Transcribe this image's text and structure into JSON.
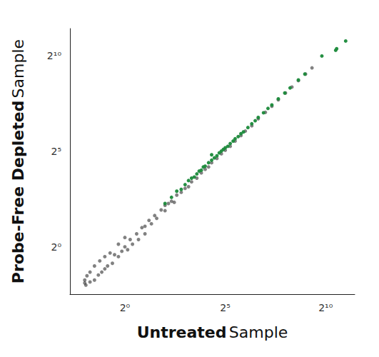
{
  "chart_data": {
    "type": "scatter",
    "x_label": [
      "Untreated",
      "Sample"
    ],
    "y_label": [
      "Probe-Free Depleted",
      "Sample"
    ],
    "log": true,
    "grid": false,
    "xlim": [
      0.15,
      2800
    ],
    "ylim": [
      0.18,
      2700
    ],
    "xticks": [
      {
        "value": 1,
        "label": "2⁰"
      },
      {
        "value": 32,
        "label": "2⁵"
      },
      {
        "value": 1024,
        "label": "2¹⁰"
      }
    ],
    "yticks": [
      {
        "value": 1,
        "label": "2⁰"
      },
      {
        "value": 32,
        "label": "2⁵"
      },
      {
        "value": 1024,
        "label": "2¹⁰"
      }
    ],
    "series": [
      {
        "color": "#1a1a1a",
        "values": [
          [
            0.25,
            0.27
          ],
          [
            0.25,
            0.3
          ],
          [
            0.26,
            0.25
          ],
          [
            0.27,
            0.35
          ],
          [
            0.3,
            0.28
          ],
          [
            0.3,
            0.4
          ],
          [
            0.35,
            0.3
          ],
          [
            0.35,
            0.5
          ],
          [
            0.4,
            0.36
          ],
          [
            0.42,
            0.6
          ],
          [
            0.45,
            0.4
          ],
          [
            0.5,
            0.45
          ],
          [
            0.5,
            0.7
          ],
          [
            0.55,
            0.5
          ],
          [
            0.6,
            0.8
          ],
          [
            0.65,
            0.55
          ],
          [
            0.7,
            0.75
          ],
          [
            0.8,
            0.7
          ],
          [
            0.8,
            1.1
          ],
          [
            0.9,
            0.85
          ],
          [
            1,
            1
          ],
          [
            1,
            1.4
          ],
          [
            1.1,
            0.9
          ],
          [
            1.2,
            1.3
          ],
          [
            1.3,
            1.1
          ],
          [
            1.5,
            1.6
          ],
          [
            1.6,
            1.3
          ],
          [
            1.8,
            2
          ],
          [
            2,
            2.1
          ],
          [
            2,
            1.6
          ],
          [
            2.3,
            2.6
          ],
          [
            2.5,
            2.3
          ],
          [
            2.8,
            3.1
          ],
          [
            3,
            2.8
          ],
          [
            3.5,
            3.8
          ],
          [
            4,
            3.7
          ],
          [
            4,
            4.5
          ],
          [
            4.5,
            4.8
          ],
          [
            5,
            5.2
          ],
          [
            5.5,
            5
          ],
          [
            6,
            6.5
          ],
          [
            7,
            7.2
          ],
          [
            8,
            8.3
          ],
          [
            9,
            8.8
          ],
          [
            10,
            10.5
          ],
          [
            12,
            12
          ],
          [
            14,
            14.5
          ],
          [
            16,
            16.5
          ],
          [
            18,
            18
          ],
          [
            20,
            21
          ],
          [
            24,
            24.5
          ],
          [
            28,
            29
          ],
          [
            32,
            33
          ],
          [
            38,
            38
          ],
          [
            45,
            46
          ],
          [
            55,
            56
          ],
          [
            64,
            66
          ],
          [
            80,
            80
          ],
          [
            100,
            103
          ],
          [
            128,
            130
          ],
          [
            160,
            162
          ],
          [
            200,
            205
          ],
          [
            256,
            262
          ],
          [
            320,
            325
          ],
          [
            400,
            410
          ],
          [
            512,
            520
          ],
          [
            640,
            650
          ]
        ]
      },
      {
        "color": "#1a8a3a",
        "values": [
          [
            4,
            4.8
          ],
          [
            5,
            6
          ],
          [
            6,
            7.5
          ],
          [
            7,
            8
          ],
          [
            8,
            9.5
          ],
          [
            9,
            11
          ],
          [
            10,
            12
          ],
          [
            11,
            12.5
          ],
          [
            12,
            14
          ],
          [
            13,
            15.5
          ],
          [
            14,
            16
          ],
          [
            15,
            18
          ],
          [
            16,
            18.5
          ],
          [
            18,
            21
          ],
          [
            20,
            23
          ],
          [
            20,
            28
          ],
          [
            22,
            25
          ],
          [
            24,
            27
          ],
          [
            26,
            30
          ],
          [
            28,
            32
          ],
          [
            30,
            34
          ],
          [
            32,
            36
          ],
          [
            35,
            38
          ],
          [
            38,
            42
          ],
          [
            42,
            46
          ],
          [
            45,
            50
          ],
          [
            50,
            54
          ],
          [
            55,
            60
          ],
          [
            60,
            64
          ],
          [
            70,
            75
          ],
          [
            80,
            86
          ],
          [
            90,
            96
          ],
          [
            100,
            108
          ],
          [
            120,
            128
          ],
          [
            140,
            150
          ],
          [
            160,
            170
          ],
          [
            200,
            212
          ],
          [
            250,
            262
          ],
          [
            300,
            315
          ],
          [
            400,
            420
          ],
          [
            500,
            520
          ],
          [
            900,
            1000
          ],
          [
            1450,
            1230
          ],
          [
            1500,
            1300
          ],
          [
            2048,
            1720
          ]
        ]
      }
    ]
  }
}
